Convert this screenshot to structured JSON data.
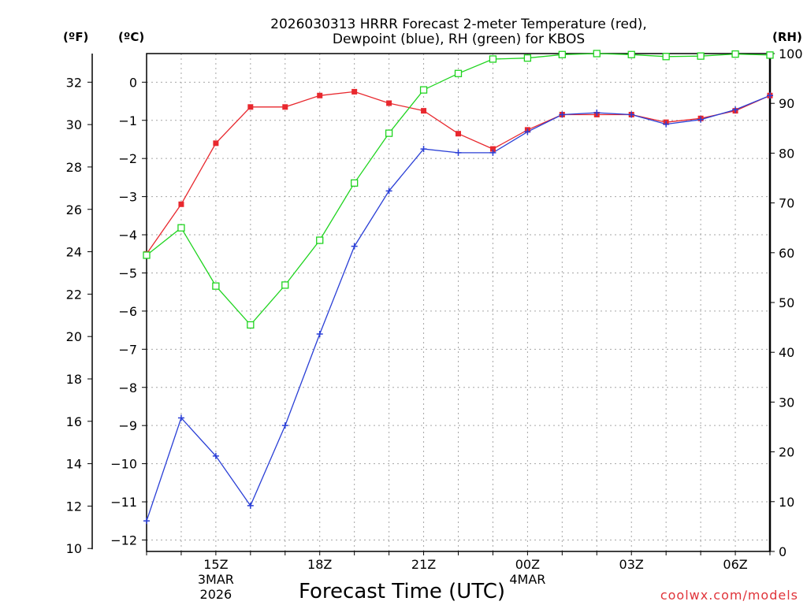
{
  "chart_data": {
    "type": "line",
    "title_line1": "2026030313 HRRR Forecast 2-meter Temperature (red),",
    "title_line2": "Dewpoint (blue), RH (green) for KBOS",
    "xlabel": "Forecast Time (UTC)",
    "credit": "coolwx.com/models",
    "unit_f": "(ºF)",
    "unit_c": "(ºC)",
    "unit_rh": "(RH)",
    "x_hours": [
      13,
      14,
      15,
      16,
      17,
      18,
      19,
      20,
      21,
      22,
      23,
      24,
      25,
      26,
      27,
      28,
      29,
      30,
      31
    ],
    "x_tick_labels": [
      {
        "hour": 15,
        "lines": [
          "15Z",
          "3MAR",
          "2026"
        ]
      },
      {
        "hour": 18,
        "lines": [
          "18Z"
        ]
      },
      {
        "hour": 21,
        "lines": [
          "21Z"
        ]
      },
      {
        "hour": 24,
        "lines": [
          "00Z",
          "4MAR"
        ]
      },
      {
        "hour": 27,
        "lines": [
          "03Z"
        ]
      },
      {
        "hour": 30,
        "lines": [
          "06Z"
        ]
      }
    ],
    "y_left_f_ticks": [
      10,
      12,
      14,
      16,
      18,
      20,
      22,
      24,
      26,
      28,
      30,
      32
    ],
    "y_left_c_ticks": [
      -12,
      -11,
      -10,
      -9,
      -8,
      -7,
      -6,
      -5,
      -4,
      -3,
      -2,
      -1,
      0
    ],
    "y_right_rh_ticks": [
      0,
      10,
      20,
      30,
      40,
      50,
      60,
      70,
      80,
      90,
      100
    ],
    "ylim_c": [
      -12.3,
      0.75
    ],
    "ylim_rh": [
      0,
      100
    ],
    "series": [
      {
        "name": "Temperature",
        "color": "#e8282e",
        "marker": "filled-square",
        "unit": "C",
        "values": [
          -4.5,
          -3.2,
          -1.6,
          -0.65,
          -0.65,
          -0.35,
          -0.25,
          -0.55,
          -0.75,
          -1.35,
          -1.75,
          -1.25,
          -0.85,
          -0.85,
          -0.85,
          -1.05,
          -0.95,
          -0.75,
          -0.35
        ]
      },
      {
        "name": "Dewpoint",
        "color": "#2a3fd6",
        "marker": "plus",
        "unit": "C",
        "values": [
          -11.5,
          -8.8,
          -9.8,
          -11.1,
          -9.0,
          -6.6,
          -4.3,
          -2.85,
          -1.75,
          -1.85,
          -1.85,
          -1.3,
          -0.85,
          -0.8,
          -0.85,
          -1.1,
          -0.98,
          -0.72,
          -0.35
        ]
      },
      {
        "name": "RH",
        "color": "#1fd41f",
        "marker": "open-square",
        "unit": "RH",
        "values": [
          59.5,
          65,
          53.3,
          45.5,
          53.5,
          62.5,
          74,
          84,
          92.7,
          96,
          98.9,
          99.1,
          99.8,
          100,
          99.8,
          99.4,
          99.5,
          99.9,
          99.7
        ]
      }
    ]
  }
}
